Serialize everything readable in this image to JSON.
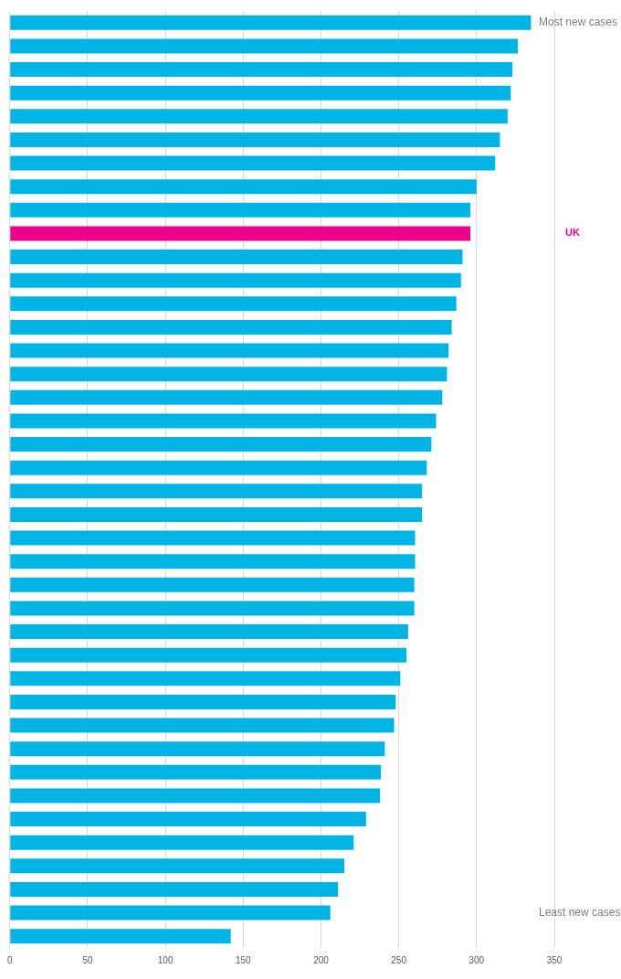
{
  "chart_data": {
    "type": "bar",
    "orientation": "horizontal",
    "categories": [
      null,
      null,
      null,
      null,
      null,
      null,
      null,
      null,
      null,
      "UK",
      null,
      null,
      null,
      null,
      null,
      null,
      null,
      null,
      null,
      null,
      null,
      null,
      null,
      null,
      null,
      null,
      null,
      null,
      null,
      null,
      null,
      null,
      null,
      null,
      null,
      null,
      null,
      null,
      null,
      null
    ],
    "values": [
      335,
      326.5,
      323,
      322,
      320,
      315,
      312,
      300,
      296,
      296,
      291,
      290,
      287,
      284,
      282,
      281,
      278,
      274,
      271,
      268,
      265,
      265,
      260.5,
      260.5,
      260,
      260,
      256,
      255,
      251,
      248,
      247,
      241,
      238.5,
      238,
      229,
      221,
      215,
      211,
      206,
      142
    ],
    "colors": [
      "#00b4e6",
      "#00b4e6",
      "#00b4e6",
      "#00b4e6",
      "#00b4e6",
      "#00b4e6",
      "#00b4e6",
      "#00b4e6",
      "#00b4e6",
      "#ec008c",
      "#00b4e6",
      "#00b4e6",
      "#00b4e6",
      "#00b4e6",
      "#00b4e6",
      "#00b4e6",
      "#00b4e6",
      "#00b4e6",
      "#00b4e6",
      "#00b4e6",
      "#00b4e6",
      "#00b4e6",
      "#00b4e6",
      "#00b4e6",
      "#00b4e6",
      "#00b4e6",
      "#00b4e6",
      "#00b4e6",
      "#00b4e6",
      "#00b4e6",
      "#00b4e6",
      "#00b4e6",
      "#00b4e6",
      "#00b4e6",
      "#00b4e6",
      "#00b4e6",
      "#00b4e6",
      "#00b4e6",
      "#00b4e6",
      "#00b4e6"
    ],
    "xlim": [
      0,
      350
    ],
    "xticks": [
      0,
      50,
      100,
      150,
      200,
      250,
      300,
      350
    ],
    "grid": true,
    "annotations": [
      "Most new cases",
      "Least new cases"
    ]
  }
}
